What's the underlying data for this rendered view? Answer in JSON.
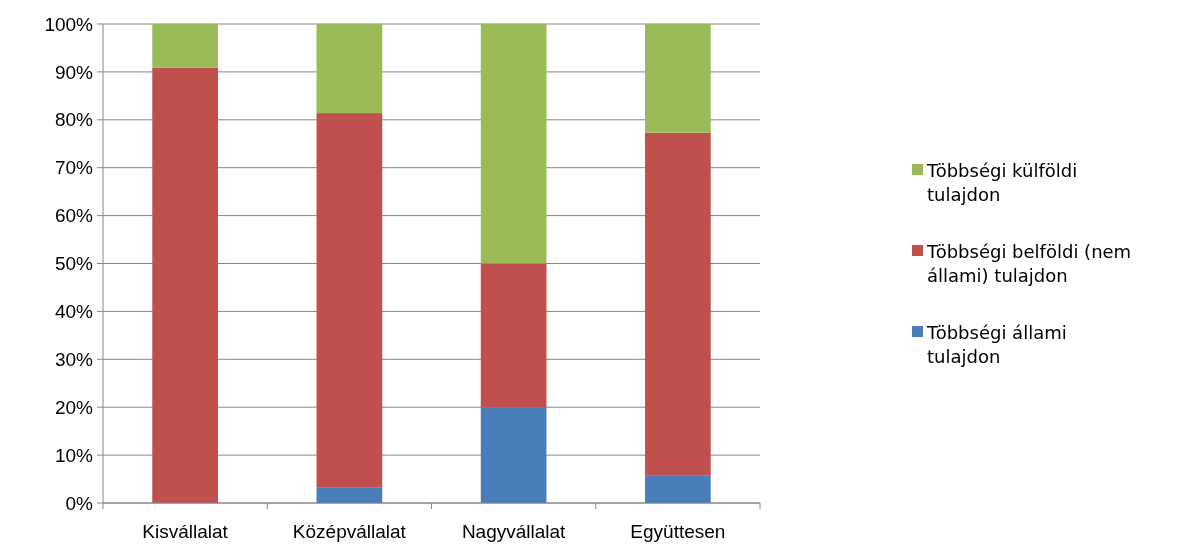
{
  "chart_data": {
    "type": "bar",
    "stacked": true,
    "categories": [
      "Kisvállalat",
      "Középvállalat",
      "Nagyvállalat",
      "Együttesen"
    ],
    "series": [
      {
        "name": "Többségi állami tulajdon",
        "color": "#4a7ebb",
        "values": [
          0,
          3.3,
          20,
          5.8
        ]
      },
      {
        "name": "Többségi belföldi (nem állami) tulajdon",
        "color": "#c0504d",
        "values": [
          90.9,
          78.1,
          30,
          71.5
        ]
      },
      {
        "name": "Többségi külföldi tulajdon",
        "color": "#9bbb59",
        "values": [
          9.1,
          18.6,
          50,
          22.7
        ]
      }
    ],
    "ylim": [
      0,
      100
    ],
    "yticks": [
      {
        "value": 0,
        "label": "0%"
      },
      {
        "value": 10,
        "label": "10%"
      },
      {
        "value": 20,
        "label": "20%"
      },
      {
        "value": 30,
        "label": "30%"
      },
      {
        "value": 40,
        "label": "40%"
      },
      {
        "value": 50,
        "label": "50%"
      },
      {
        "value": 60,
        "label": "60%"
      },
      {
        "value": 70,
        "label": "70%"
      },
      {
        "value": 80,
        "label": "80%"
      },
      {
        "value": 90,
        "label": "90%"
      },
      {
        "value": 100,
        "label": "100%"
      }
    ],
    "grid": "y",
    "legend": "right"
  }
}
